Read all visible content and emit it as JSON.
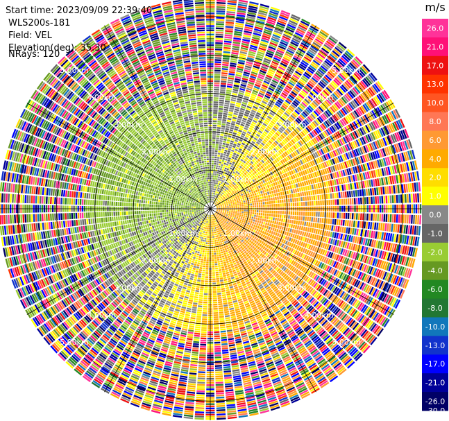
{
  "info": {
    "start_time": "Start time: 2023/09/09 22:39:40",
    "instrument": "WLS200s-181",
    "field": "Field: VEL",
    "elevation": "Elevation(deg): 35.30",
    "nrays": "NRays: 120"
  },
  "colorbar": {
    "unit": "m/s",
    "ticks": [
      "26.0",
      "21.0",
      "17.0",
      "13.0",
      "10.0",
      "8.0",
      "6.0",
      "4.0",
      "2.0",
      "1.0",
      "0.0",
      "-1.0",
      "-2.0",
      "-4.0",
      "-6.0",
      "-8.0",
      "-10.0",
      "-13.0",
      "-17.0",
      "-21.0",
      "-26.0",
      "-30.0"
    ],
    "colors": [
      "#ff3399",
      "#ff1177",
      "#ee1111",
      "#ff3300",
      "#ff5522",
      "#ff7755",
      "#ff9933",
      "#ffaa00",
      "#ffdd00",
      "#ffff00",
      "#888888",
      "#666666",
      "#99cc33",
      "#669922",
      "#228822",
      "#227733",
      "#1177bb",
      "#1133cc",
      "#0000ff",
      "#000099",
      "#000066"
    ]
  },
  "chart_data": {
    "type": "polar-ppi",
    "field": "VEL",
    "units": "m/s",
    "nrays": 120,
    "range_rings_km": [
      1.0,
      2.0,
      3.0,
      4.0,
      5.0
    ],
    "ring_labels": [
      "1.00km",
      "2.00km",
      "3.00km",
      "4.00km",
      "5.00km"
    ],
    "vmin": -30.0,
    "vmax": 26.0
  }
}
